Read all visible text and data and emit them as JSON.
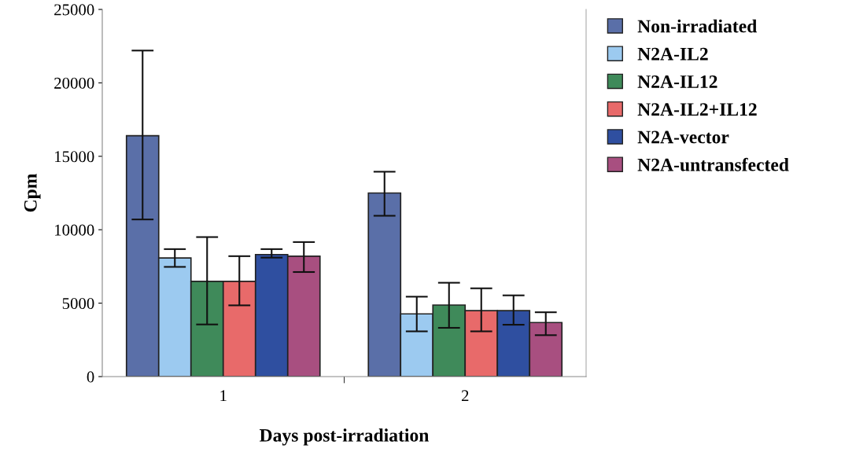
{
  "chart_data": {
    "type": "bar",
    "xlabel": "Days post-irradiation",
    "ylabel": "Cpm",
    "categories": [
      "1",
      "2"
    ],
    "ylim": [
      0,
      25000
    ],
    "yticks": [
      0,
      5000,
      10000,
      15000,
      20000,
      25000
    ],
    "grid": false,
    "legend": "top right",
    "series": [
      {
        "name": "Non-irradiated",
        "color": "#5a6fa8",
        "values": [
          16400,
          12500
        ],
        "errors": [
          [
            10700,
            22200
          ],
          [
            10950,
            13950
          ]
        ]
      },
      {
        "name": "N2A-IL2",
        "color": "#9ccaf0",
        "values": [
          8080,
          4270
        ],
        "errors": [
          [
            7470,
            8680
          ],
          [
            3080,
            5440
          ]
        ]
      },
      {
        "name": "N2A-IL12",
        "color": "#3f8a5a",
        "values": [
          6480,
          4870
        ],
        "errors": [
          [
            3550,
            9500
          ],
          [
            3320,
            6390
          ]
        ]
      },
      {
        "name": "N2A-IL2+IL12",
        "color": "#e86a6a",
        "values": [
          6480,
          4490
        ],
        "errors": [
          [
            4850,
            8200
          ],
          [
            3080,
            6010
          ]
        ]
      },
      {
        "name": "N2A-vector",
        "color": "#2f4fa0",
        "values": [
          8310,
          4490
        ],
        "errors": [
          [
            8100,
            8680
          ],
          [
            3530,
            5530
          ]
        ]
      },
      {
        "name": "N2A-untransfected",
        "color": "#a84f80",
        "values": [
          8200,
          3680
        ],
        "errors": [
          [
            7120,
            9160
          ],
          [
            2820,
            4380
          ]
        ]
      }
    ]
  }
}
